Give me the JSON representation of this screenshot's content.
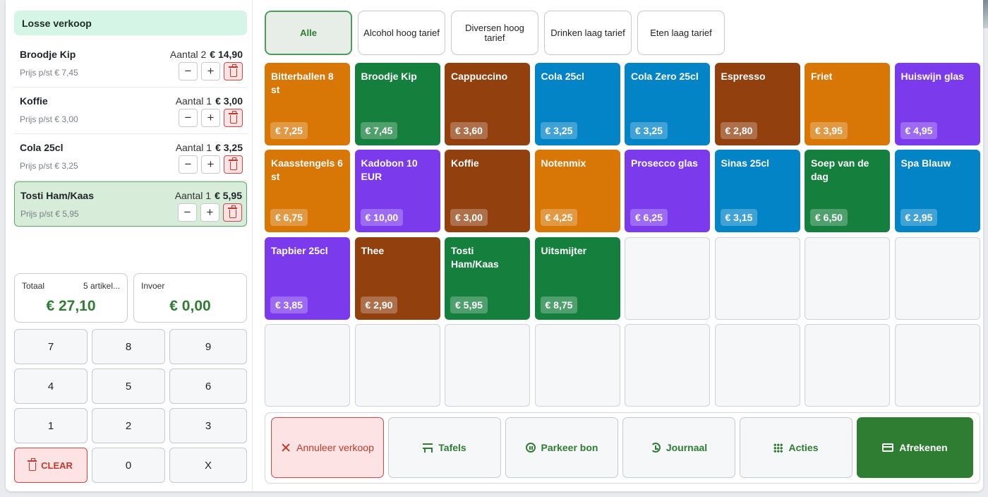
{
  "sale_header": "Losse verkoop",
  "cart": {
    "items": [
      {
        "name": "Broodje Kip",
        "qty_label": "Aantal 2",
        "total": "€ 14,90",
        "unit_price": "Prijs p/st € 7,45",
        "selected": false
      },
      {
        "name": "Koffie",
        "qty_label": "Aantal 1",
        "total": "€ 3,00",
        "unit_price": "Prijs p/st € 3,00",
        "selected": false
      },
      {
        "name": "Cola 25cl",
        "qty_label": "Aantal 1",
        "total": "€ 3,25",
        "unit_price": "Prijs p/st € 3,25",
        "selected": false
      },
      {
        "name": "Tosti Ham/Kaas",
        "qty_label": "Aantal 1",
        "total": "€ 5,95",
        "unit_price": "Prijs p/st € 5,95",
        "selected": true
      }
    ],
    "minus_glyph": "−",
    "plus_glyph": "+"
  },
  "summary": {
    "total_label": "Totaal",
    "count": "5 artikel...",
    "total_value": "€ 27,10",
    "input_label": "Invoer",
    "input_value": "€ 0,00"
  },
  "keypad": {
    "keys": [
      "7",
      "8",
      "9",
      "4",
      "5",
      "6",
      "1",
      "2",
      "3"
    ],
    "clear": "CLEAR",
    "zero": "0",
    "backspace": "X"
  },
  "categories": [
    {
      "label": "Alle",
      "active": true
    },
    {
      "label": "Alcohol hoog tarief",
      "active": false
    },
    {
      "label": "Diversen hoog tarief",
      "active": false
    },
    {
      "label": "Drinken laag tarief",
      "active": false
    },
    {
      "label": "Eten laag tarief",
      "active": false
    }
  ],
  "colors": {
    "orange": "#d97706",
    "green": "#15803d",
    "brown": "#92400e",
    "blue": "#0284c7",
    "purple": "#7c3aed",
    "accent": "#2e7d32",
    "danger": "#c0392b"
  },
  "products": [
    {
      "name": "Bitterballen 8 st",
      "price": "€ 7,25",
      "color": "#d97706"
    },
    {
      "name": "Broodje Kip",
      "price": "€ 7,45",
      "color": "#15803d"
    },
    {
      "name": "Cappuccino",
      "price": "€ 3,60",
      "color": "#92400e"
    },
    {
      "name": "Cola 25cl",
      "price": "€ 3,25",
      "color": "#0284c7"
    },
    {
      "name": "Cola Zero 25cl",
      "price": "€ 3,25",
      "color": "#0284c7"
    },
    {
      "name": "Espresso",
      "price": "€ 2,80",
      "color": "#92400e"
    },
    {
      "name": "Friet",
      "price": "€ 3,95",
      "color": "#d97706"
    },
    {
      "name": "Huiswijn glas",
      "price": "€ 4,95",
      "color": "#7c3aed"
    },
    {
      "name": "Kaasstengels 6 st",
      "price": "€ 6,75",
      "color": "#d97706"
    },
    {
      "name": "Kadobon 10 EUR",
      "price": "€ 10,00",
      "color": "#7c3aed"
    },
    {
      "name": "Koffie",
      "price": "€ 3,00",
      "color": "#92400e"
    },
    {
      "name": "Notenmix",
      "price": "€ 4,25",
      "color": "#d97706"
    },
    {
      "name": "Prosecco glas",
      "price": "€ 6,25",
      "color": "#7c3aed"
    },
    {
      "name": "Sinas 25cl",
      "price": "€ 3,15",
      "color": "#0284c7"
    },
    {
      "name": "Soep van de dag",
      "price": "€ 6,50",
      "color": "#15803d"
    },
    {
      "name": "Spa Blauw",
      "price": "€ 2,95",
      "color": "#0284c7"
    },
    {
      "name": "Tapbier 25cl",
      "price": "€ 3,85",
      "color": "#7c3aed"
    },
    {
      "name": "Thee",
      "price": "€ 2,90",
      "color": "#92400e"
    },
    {
      "name": "Tosti Ham/Kaas",
      "price": "€ 5,95",
      "color": "#15803d"
    },
    {
      "name": "Uitsmijter",
      "price": "€ 8,75",
      "color": "#15803d"
    }
  ],
  "actions": [
    {
      "label": "Annuleer verkoop",
      "icon": "close-icon",
      "kind": "cancel"
    },
    {
      "label": "Tafels",
      "icon": "table-icon",
      "kind": "normal"
    },
    {
      "label": "Parkeer bon",
      "icon": "pause-icon",
      "kind": "normal"
    },
    {
      "label": "Journaal",
      "icon": "history-icon",
      "kind": "normal"
    },
    {
      "label": "Acties",
      "icon": "grid-icon",
      "kind": "normal"
    },
    {
      "label": "Afrekenen",
      "icon": "credit-card-icon",
      "kind": "pay"
    }
  ]
}
